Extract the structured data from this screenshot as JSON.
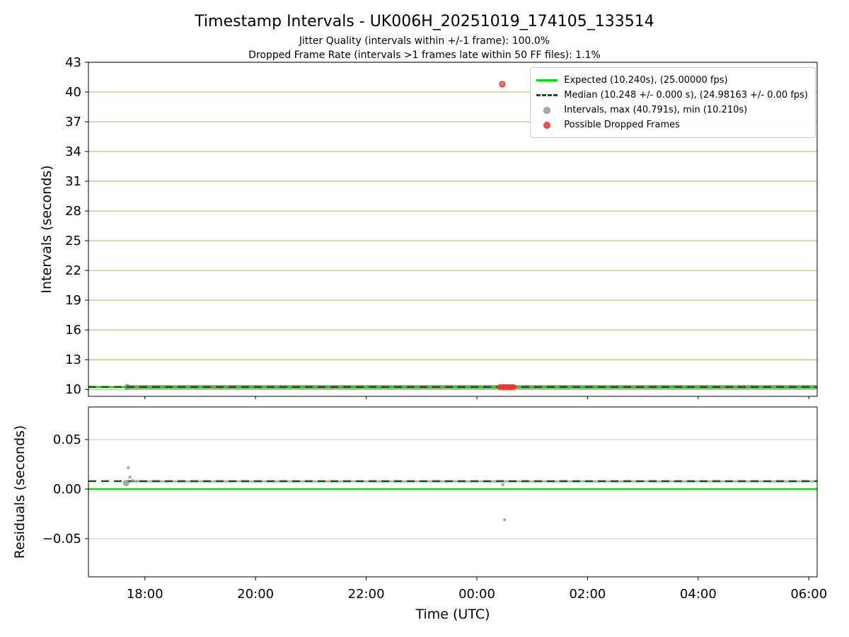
{
  "title": "Timestamp Intervals - UK006H_20251019_174105_133514",
  "subtitle_jitter": "Jitter Quality (intervals within +/-1 frame): 100.0%",
  "subtitle_dropped": "Dropped Frame Rate (intervals >1 frames late within 50 FF files): 1.1%",
  "chart_data": {
    "type": "scatter",
    "xlabel": "Time (UTC)",
    "xlim_hours": [
      16.98,
      30.15
    ],
    "xticks": [
      {
        "hour": 18,
        "label": "18:00"
      },
      {
        "hour": 20,
        "label": "20:00"
      },
      {
        "hour": 22,
        "label": "22:00"
      },
      {
        "hour": 24,
        "label": "00:00"
      },
      {
        "hour": 26,
        "label": "02:00"
      },
      {
        "hour": 28,
        "label": "04:00"
      },
      {
        "hour": 30,
        "label": "06:00"
      }
    ],
    "top": {
      "ylabel": "Intervals (seconds)",
      "ylim": [
        9.3,
        43
      ],
      "yticks": [
        {
          "v": 10,
          "label": "10"
        },
        {
          "v": 13,
          "label": "13"
        },
        {
          "v": 16,
          "label": "16"
        },
        {
          "v": 19,
          "label": "19"
        },
        {
          "v": 22,
          "label": "22"
        },
        {
          "v": 25,
          "label": "25"
        },
        {
          "v": 28,
          "label": "28"
        },
        {
          "v": 31,
          "label": "31"
        },
        {
          "v": 34,
          "label": "34"
        },
        {
          "v": 37,
          "label": "37"
        },
        {
          "v": 40,
          "label": "40"
        },
        {
          "v": 43,
          "label": "43"
        }
      ],
      "expected_value": 10.24,
      "median_value": 10.248,
      "series_value": 10.24,
      "interval_max": 40.791,
      "interval_min": 10.21,
      "data_start_hour": 17.68,
      "data_end_hour": 30.11,
      "dropped_outlier": {
        "hour": 24.46,
        "value": 40.791
      },
      "dropped_cluster": {
        "start_hour": 24.42,
        "end_hour": 24.66,
        "value": 10.24
      }
    },
    "bottom": {
      "ylabel": "Residuals (seconds)",
      "ylim": [
        -0.0886,
        0.0829
      ],
      "yticks": [
        {
          "v": 0.05,
          "label": "0.05"
        },
        {
          "v": 0.0,
          "label": "0.00"
        },
        {
          "v": -0.05,
          "label": "−0.05"
        }
      ],
      "expected_value": 0.0,
      "median_value": 0.008,
      "series_value": 0.0078,
      "data_start_hour": 17.68,
      "data_end_hour": 30.11,
      "scatter_points": [
        {
          "hour": 17.66,
          "value": 0.006,
          "r": 4.5
        },
        {
          "hour": 17.7,
          "value": 0.0215,
          "r": 2.2
        },
        {
          "hour": 17.73,
          "value": 0.012,
          "r": 2.2
        },
        {
          "hour": 17.78,
          "value": 0.0085,
          "r": 2.2
        },
        {
          "hour": 17.85,
          "value": 0.008,
          "r": 2.0
        },
        {
          "hour": 24.5,
          "value": -0.031,
          "r": 2.2
        },
        {
          "hour": 24.47,
          "value": 0.0045,
          "r": 2.4
        }
      ]
    },
    "legend": [
      {
        "label": "Expected (10.240s), (25.00000 fps)",
        "marker": "line-solid",
        "color_key": "expected"
      },
      {
        "label": "Median (10.248 +/- 0.000 s), (24.98163 +/- 0.00 fps)",
        "marker": "line-dashed",
        "color_key": "median"
      },
      {
        "label": "Intervals, max (40.791s), min (10.210s)",
        "marker": "dot",
        "color_key": "intervals"
      },
      {
        "label": "Possible Dropped Frames",
        "marker": "dot",
        "color_key": "dropped"
      }
    ],
    "colors": {
      "expected": "#00e000",
      "median": "#006400",
      "intervals": "#9a9a9a",
      "intervals_edge": "#7f7f7f",
      "dropped": "#ff2d2d",
      "dropped_edge": "#c41f1f",
      "grid_top": "#c8bf7a",
      "grid_bottom": "#cccccc",
      "frame": "#000000"
    }
  }
}
